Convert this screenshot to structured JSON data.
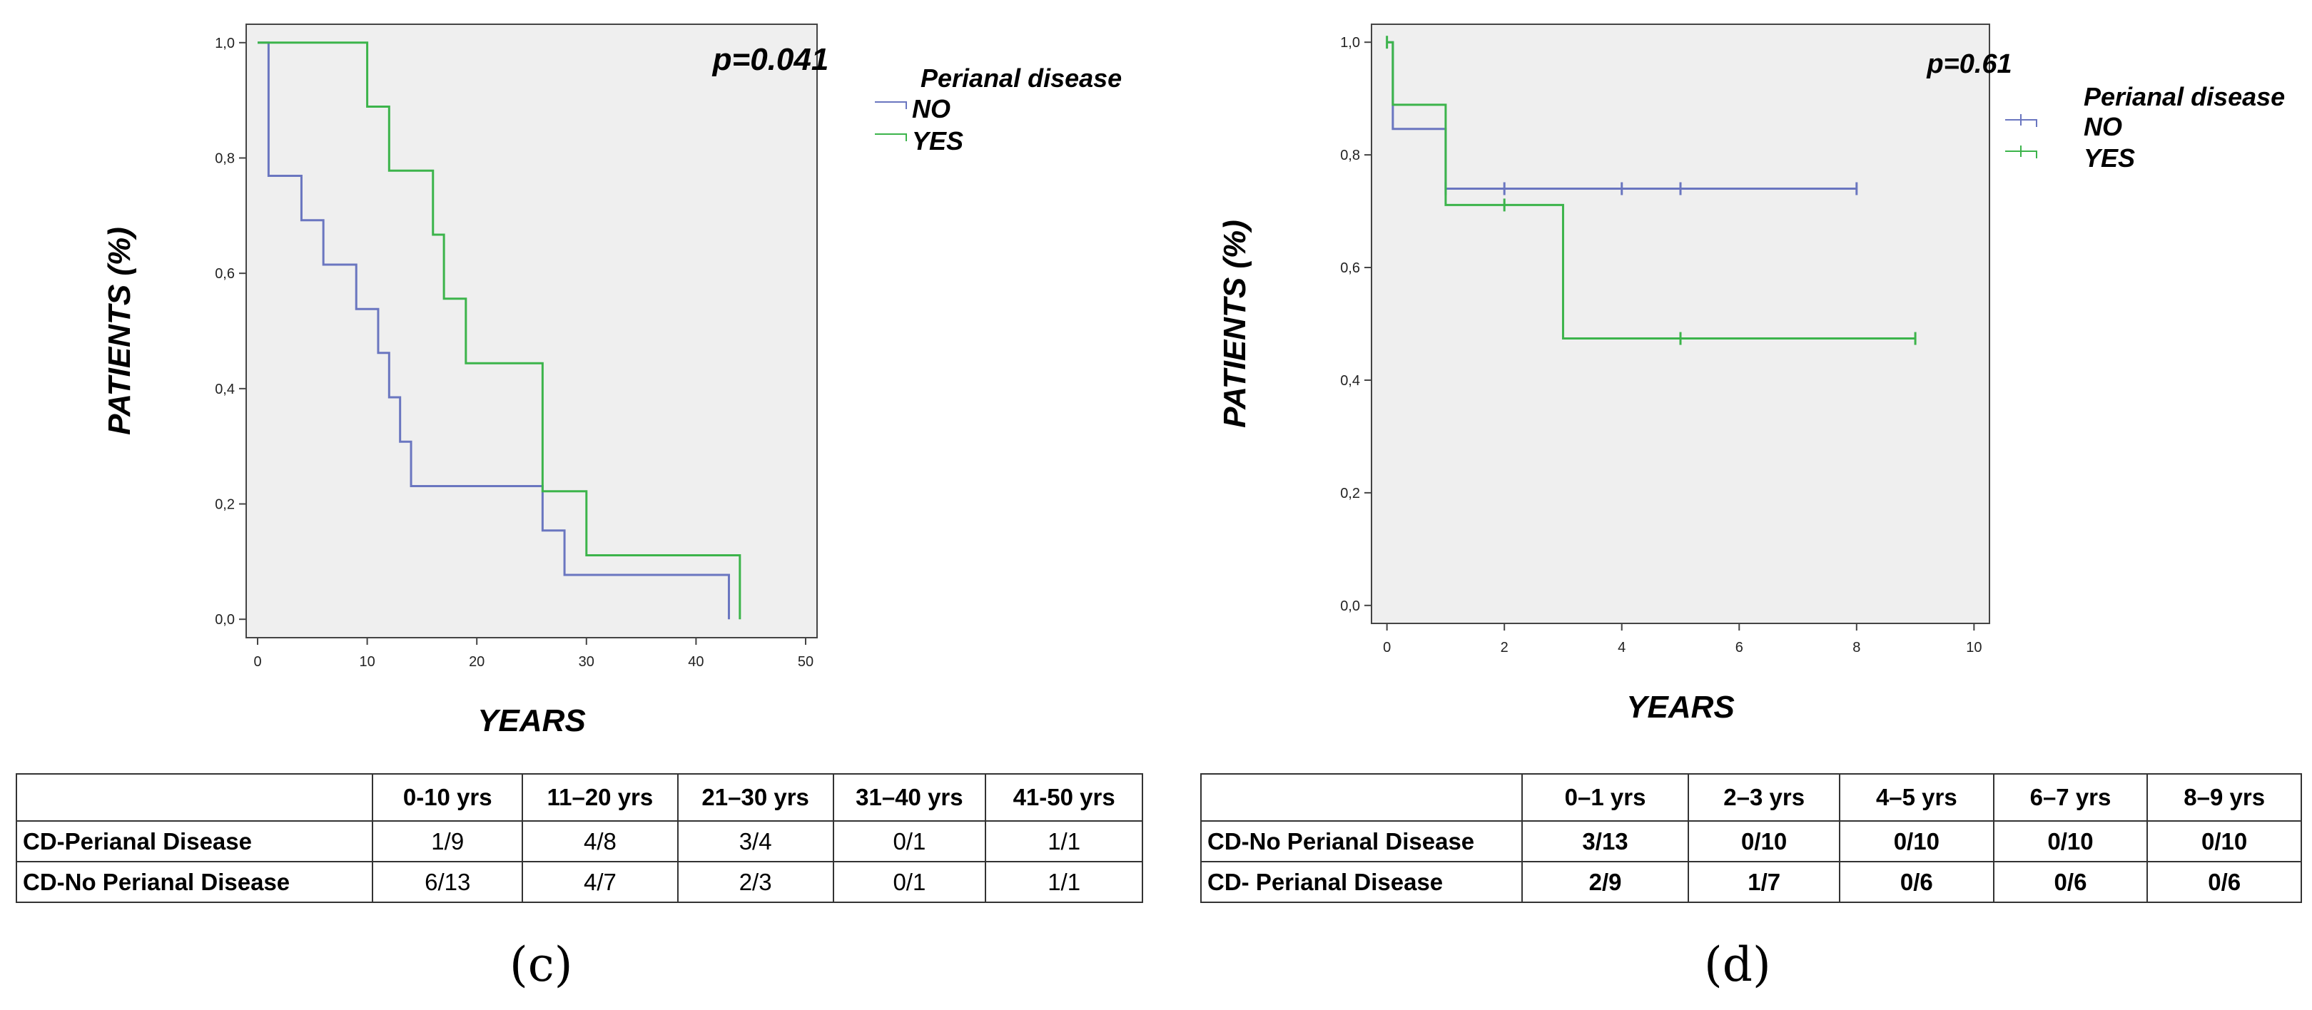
{
  "chart_data": [
    {
      "panel": "c",
      "type": "line",
      "subtype": "kaplan-meier step",
      "p_value_label": "p=0.041",
      "xlabel": "YEARS",
      "ylabel": "PATIENTS (%)",
      "xlim": [
        0,
        50
      ],
      "ylim": [
        0,
        1
      ],
      "x_ticks": [
        0,
        10,
        20,
        30,
        40,
        50
      ],
      "x_tick_labels": [
        "0",
        "10",
        "20",
        "30",
        "40",
        "50"
      ],
      "y_ticks": [
        0,
        0.2,
        0.4,
        0.6,
        0.8,
        1.0
      ],
      "y_tick_labels": [
        "0,0",
        "0,2",
        "0,4",
        "0,6",
        "0,8",
        "1,0"
      ],
      "legend": {
        "title": "Perianal disease",
        "placement": "top-right outside"
      },
      "series": [
        {
          "name": "NO",
          "color": "#6a76c0",
          "x": [
            0,
            1,
            4,
            6,
            9,
            11,
            12,
            13,
            14,
            26,
            28,
            43
          ],
          "y": [
            1.0,
            0.769,
            0.692,
            0.615,
            0.538,
            0.462,
            0.385,
            0.308,
            0.231,
            0.154,
            0.077,
            0.0
          ],
          "x_end": 43,
          "censored": []
        },
        {
          "name": "YES",
          "color": "#3cb44b",
          "x": [
            0,
            10,
            12,
            16,
            17,
            19,
            26,
            30,
            44
          ],
          "y": [
            1.0,
            0.889,
            0.778,
            0.667,
            0.556,
            0.444,
            0.222,
            0.111,
            0.0
          ],
          "x_end": 44,
          "censored": []
        }
      ]
    },
    {
      "panel": "d",
      "type": "line",
      "subtype": "kaplan-meier step",
      "p_value_label": "p=0.61",
      "xlabel": "YEARS",
      "ylabel": "PATIENTS (%)",
      "xlim": [
        0,
        10
      ],
      "ylim": [
        0,
        1
      ],
      "x_ticks": [
        0,
        2,
        4,
        6,
        8,
        10
      ],
      "x_tick_labels": [
        "0",
        "2",
        "4",
        "6",
        "8",
        "10"
      ],
      "y_ticks": [
        0,
        0.2,
        0.4,
        0.6,
        0.8,
        1.0
      ],
      "y_tick_labels": [
        "0,0",
        "0,2",
        "0,4",
        "0,6",
        "0,8",
        "1,0"
      ],
      "legend": {
        "title": "Perianal disease",
        "placement": "top-right outside"
      },
      "series": [
        {
          "name": "NO",
          "color": "#6a76c0",
          "x": [
            0,
            0.1,
            1
          ],
          "y": [
            1.0,
            0.846,
            0.74
          ],
          "x_end": 8,
          "censored": [
            [
              1,
              0.74
            ],
            [
              2,
              0.74
            ],
            [
              4,
              0.74
            ],
            [
              5,
              0.74
            ],
            [
              8,
              0.74
            ]
          ]
        },
        {
          "name": "YES",
          "color": "#3cb44b",
          "x": [
            0,
            0.1,
            1,
            3
          ],
          "y": [
            1.0,
            0.889,
            0.711,
            0.474
          ],
          "x_end": 9,
          "censored": [
            [
              0,
              1.0
            ],
            [
              2,
              0.711
            ],
            [
              5,
              0.474
            ],
            [
              9,
              0.474
            ]
          ]
        }
      ]
    }
  ],
  "tables": {
    "c": {
      "headers": [
        "",
        "0-10 yrs",
        "11–20 yrs",
        "21–30 yrs",
        "31–40 yrs",
        "41-50 yrs"
      ],
      "rows": [
        [
          "CD-Perianal Disease",
          "1/9",
          "4/8",
          "3/4",
          "0/1",
          "1/1"
        ],
        [
          "CD-No Perianal Disease",
          "6/13",
          "4/7",
          "2/3",
          "0/1",
          "1/1"
        ]
      ]
    },
    "d": {
      "headers": [
        "",
        "0–1 yrs",
        "2–3 yrs",
        "4–5 yrs",
        "6–7 yrs",
        "8–9 yrs"
      ],
      "rows": [
        [
          "CD-No Perianal Disease",
          "3/13",
          "0/10",
          "0/10",
          "0/10",
          "0/10"
        ],
        [
          "CD- Perianal Disease",
          "2/9",
          "1/7",
          "0/6",
          "0/6",
          "0/6"
        ]
      ]
    }
  },
  "panel_labels": {
    "c": "(c)",
    "d": "(d)"
  }
}
